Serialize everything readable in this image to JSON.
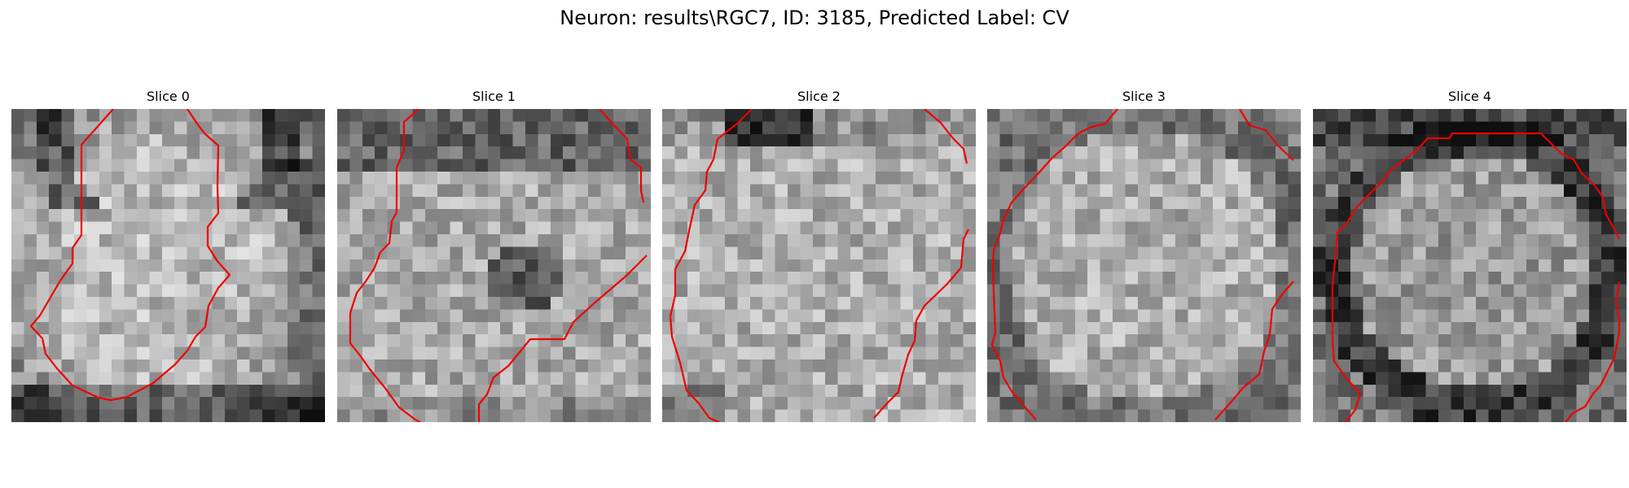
{
  "figure": {
    "title": "Neuron: results\\RGC7, ID: 3185, Predicted Label: CV"
  },
  "panels": [
    {
      "title": "Slice 0",
      "grid": 25,
      "style": "cell-blob",
      "seed": 11
    },
    {
      "title": "Slice 1",
      "grid": 25,
      "style": "textured-dark-center",
      "seed": 23
    },
    {
      "title": "Slice 2",
      "grid": 25,
      "style": "bright-field",
      "seed": 37
    },
    {
      "title": "Slice 3",
      "grid": 25,
      "style": "round-cell",
      "seed": 51
    },
    {
      "title": "Slice 4",
      "grid": 25,
      "style": "ring-cell",
      "seed": 67
    }
  ],
  "contour_color": "#ee0000"
}
